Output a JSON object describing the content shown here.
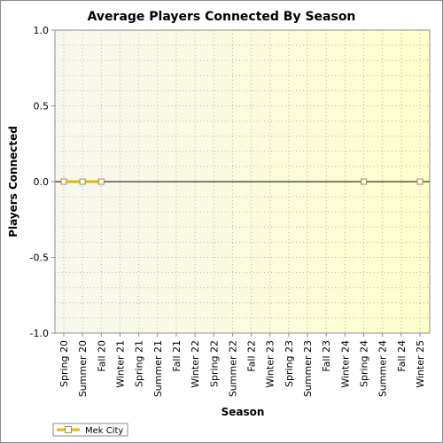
{
  "chart_data": {
    "type": "line",
    "title": "Average Players Connected By Season",
    "xlabel": "Season",
    "ylabel": "Players Connected",
    "categories": [
      "Spring 20",
      "Summer 20",
      "Fall 20",
      "Winter 21",
      "Spring 21",
      "Summer 21",
      "Fall 21",
      "Winter 22",
      "Spring 22",
      "Summer 22",
      "Fall 22",
      "Winter 23",
      "Spring 23",
      "Summer 23",
      "Fall 23",
      "Winter 24",
      "Spring 24",
      "Summer 24",
      "Fall 24",
      "Winter 25"
    ],
    "yticks": [
      "1.0",
      "0.5",
      "0.0",
      "-0.5",
      "-1.0"
    ],
    "ylim": [
      -1.0,
      1.0
    ],
    "series": [
      {
        "name": "Mek City",
        "color": "#e6b800",
        "points": [
          {
            "category": "Spring 20",
            "value": 0
          },
          {
            "category": "Summer 20",
            "value": 0
          },
          {
            "category": "Fall 20",
            "value": 0
          },
          {
            "category": "Spring 24",
            "value": 0
          },
          {
            "category": "Winter 25",
            "value": 0
          }
        ]
      }
    ],
    "grid": true,
    "legend": "bottom-left",
    "colors": {
      "plot_gradient_start": "#f7f7f0",
      "plot_gradient_end": "#ffffcc",
      "zero_line": "#000000"
    }
  }
}
